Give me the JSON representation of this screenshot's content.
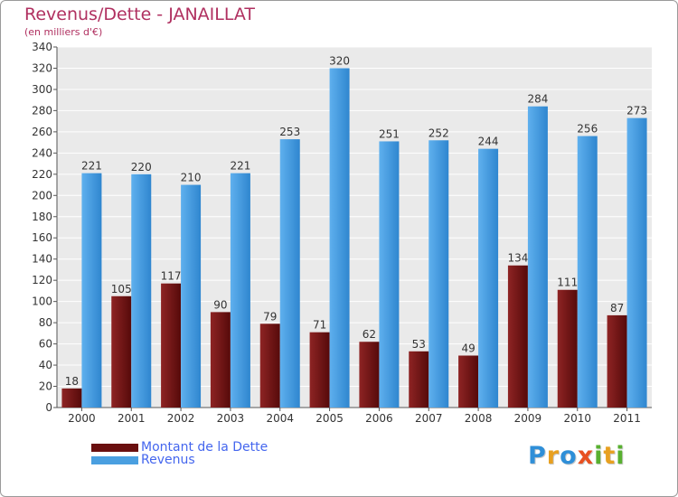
{
  "chart_data": {
    "type": "bar",
    "title": "Revenus/Dette - JANAILLAT",
    "subtitle": "(en milliers d'€)",
    "categories": [
      "2000",
      "2001",
      "2002",
      "2003",
      "2004",
      "2005",
      "2006",
      "2007",
      "2008",
      "2009",
      "2010",
      "2011"
    ],
    "series": [
      {
        "name": "Montant de la Dette",
        "values": [
          18,
          105,
          117,
          90,
          79,
          71,
          62,
          53,
          49,
          134,
          111,
          87
        ],
        "color": "#7a1818"
      },
      {
        "name": "Revenus",
        "values": [
          221,
          220,
          210,
          221,
          253,
          320,
          251,
          252,
          244,
          284,
          256,
          273
        ],
        "color": "#4a9fe0"
      }
    ],
    "ylim": [
      0,
      340
    ],
    "yticks": [
      0,
      20,
      40,
      60,
      80,
      100,
      120,
      140,
      160,
      180,
      200,
      220,
      240,
      260,
      280,
      300,
      320,
      340
    ],
    "grid": true,
    "legend_position": "bottom-left"
  },
  "legend": {
    "items": [
      {
        "label": "Montant de la Dette",
        "color": "#6a0f0f"
      },
      {
        "label": "Revenus",
        "color": "#4a9fe0"
      }
    ]
  },
  "logo": {
    "letters": [
      "P",
      "r",
      "o",
      "x",
      "i",
      "t",
      "i"
    ],
    "colors": [
      "#2f8fd8",
      "#e8a020",
      "#2f8fd8",
      "#e85020",
      "#58b030",
      "#e8a020",
      "#58b030"
    ]
  }
}
